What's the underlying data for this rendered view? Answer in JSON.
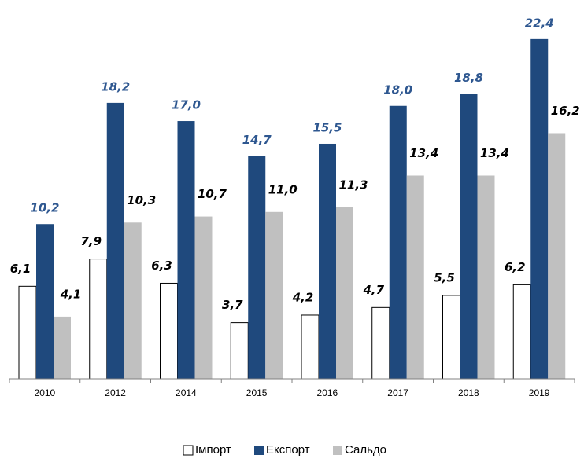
{
  "chart_data": {
    "type": "bar",
    "categories": [
      "2010",
      "2012",
      "2014",
      "2015",
      "2016",
      "2017",
      "2018",
      "2019"
    ],
    "series": [
      {
        "name": "Імпорт",
        "color": "#ffffff",
        "label_color": "#000000",
        "values": [
          6.1,
          7.9,
          6.3,
          3.7,
          4.2,
          4.7,
          5.5,
          6.2
        ],
        "value_labels": [
          "6,1",
          "7,9",
          "6,3",
          "3,7",
          "4,2",
          "4,7",
          "5,5",
          "6,2"
        ]
      },
      {
        "name": "Експорт",
        "color": "#1f497d",
        "label_color": "#2e5790",
        "values": [
          10.2,
          18.2,
          17.0,
          14.7,
          15.5,
          18.0,
          18.8,
          22.4
        ],
        "value_labels": [
          "10,2",
          "18,2",
          "17,0",
          "14,7",
          "15,5",
          "18,0",
          "18,8",
          "22,4"
        ]
      },
      {
        "name": "Сальдо",
        "color": "#c0c0c0",
        "label_color": "#000000",
        "values": [
          4.1,
          10.3,
          10.7,
          11.0,
          11.3,
          13.4,
          13.4,
          16.2
        ],
        "value_labels": [
          "4,1",
          "10,3",
          "10,7",
          "11,0",
          "11,3",
          "13,4",
          "13,4",
          "16,2"
        ]
      }
    ],
    "ylim": [
      0,
      24
    ],
    "legend": "bottom"
  }
}
